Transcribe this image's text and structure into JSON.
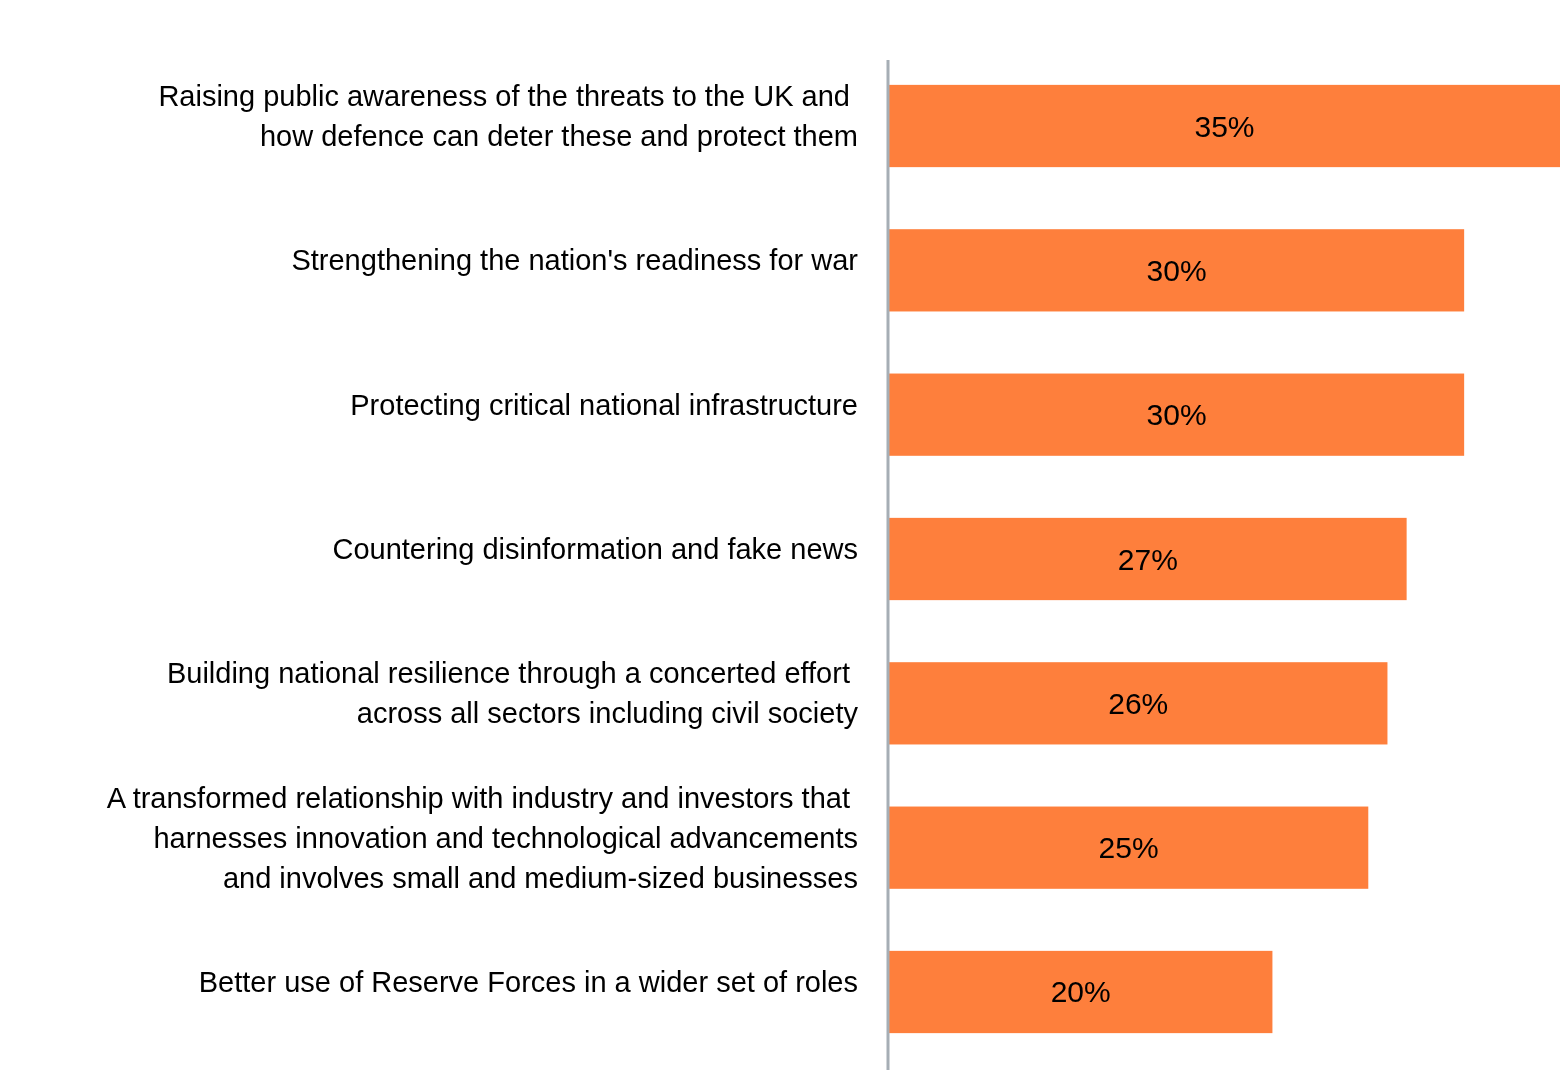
{
  "chart_data": {
    "type": "bar",
    "orientation": "horizontal",
    "categories": [
      "Raising public awareness of the threats to the UK and \nhow defence can deter these and protect them",
      "Strengthening the nation's readiness for war",
      "Protecting critical national infrastructure",
      "Countering disinformation and fake news",
      "Building national resilience through a concerted effort \nacross all sectors including civil society",
      "A transformed relationship with industry and investors that \nharnesses innovation and technological advancements\nand involves small and medium-sized businesses",
      "Better use of Reserve Forces in a wider set of roles"
    ],
    "values": [
      35,
      30,
      30,
      27,
      26,
      25,
      20
    ],
    "value_labels": [
      "35%",
      "30%",
      "30%",
      "27%",
      "26%",
      "25%",
      "20%"
    ],
    "color": "#fe7f3c"
  }
}
